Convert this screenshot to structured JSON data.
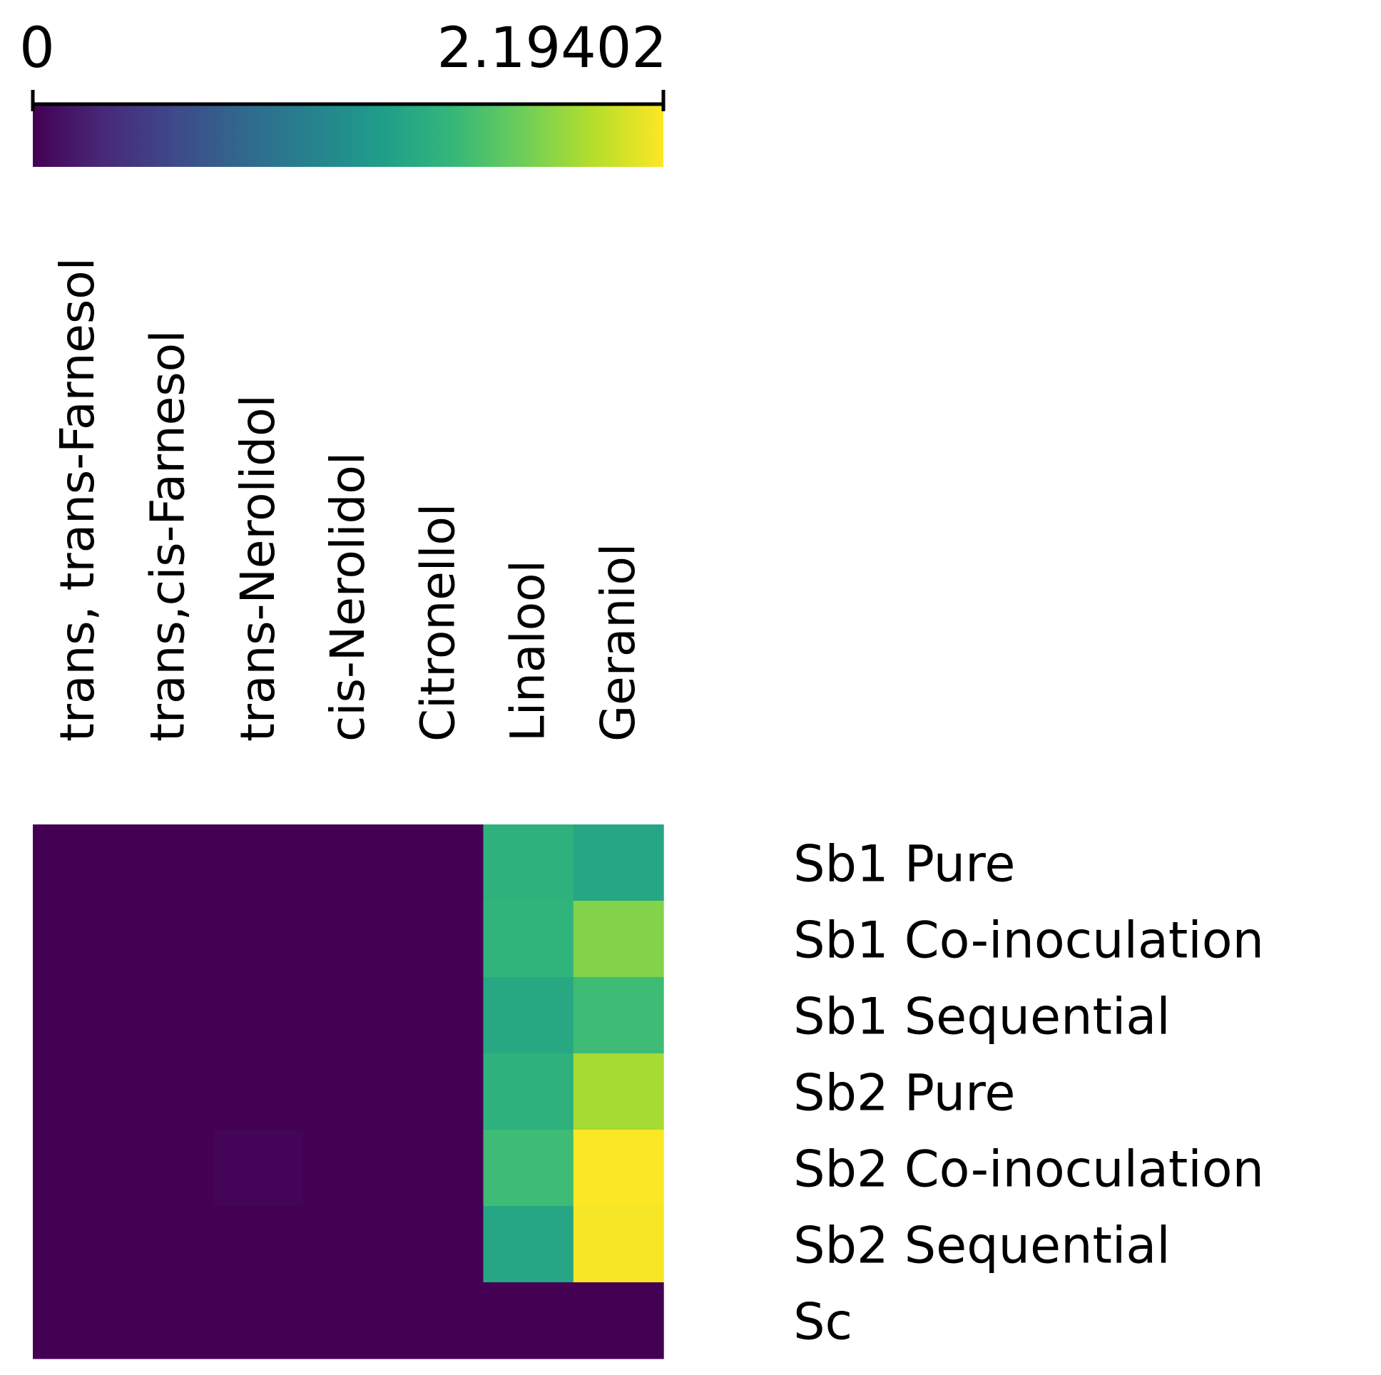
{
  "chart_data": {
    "type": "heatmap",
    "title": "",
    "colorscale": {
      "name": "viridis",
      "min": 0,
      "max": 2.19402,
      "min_label": "0",
      "max_label": "2.19402",
      "stops": [
        "#440154",
        "#482878",
        "#3e4989",
        "#31688e",
        "#26828e",
        "#1f9e89",
        "#35b779",
        "#6ece58",
        "#b5de2b",
        "#fde725"
      ]
    },
    "columns": [
      "trans, trans-Farnesol",
      "trans,cis-Farnesol",
      "trans-Nerolidol",
      "cis-Nerolidol",
      "Citronellol",
      "Linalool",
      "Geraniol"
    ],
    "rows": [
      "Sb1 Pure",
      "Sb1 Co-inoculation",
      "Sb1 Sequential",
      "Sb2 Pure",
      "Sb2 Co-inoculation",
      "Sb2 Sequential",
      "Sc"
    ],
    "values": [
      [
        0.0,
        0.0,
        0.0,
        0.0,
        0.0,
        1.4,
        1.3
      ],
      [
        0.0,
        0.0,
        0.0,
        0.0,
        0.0,
        1.42,
        1.78
      ],
      [
        0.0,
        0.0,
        0.0,
        0.0,
        0.0,
        1.32,
        1.5
      ],
      [
        0.0,
        0.0,
        0.0,
        0.0,
        0.0,
        1.4,
        1.9
      ],
      [
        0.0,
        0.0,
        0.02,
        0.0,
        0.0,
        1.5,
        2.19
      ],
      [
        0.0,
        0.0,
        0.0,
        0.0,
        0.0,
        1.3,
        2.17
      ],
      [
        0.0,
        0.0,
        0.0,
        0.0,
        0.0,
        0.0,
        0.0
      ]
    ]
  }
}
